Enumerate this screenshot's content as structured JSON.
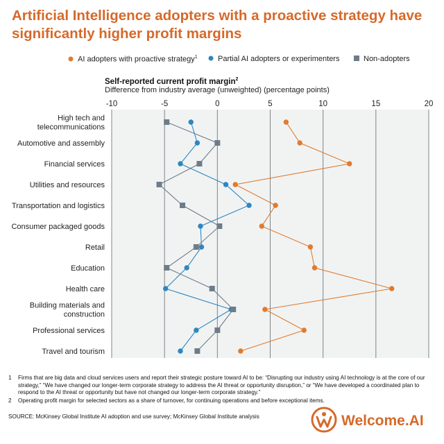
{
  "header": {
    "title": "Artificial Intelligence adopters with a proactive strategy have significantly higher profit margins"
  },
  "legend": {
    "items": [
      {
        "label": "AI adopters with proactive strategy",
        "sup": "1",
        "marker": "circle",
        "color": "#e07b2e"
      },
      {
        "label": "Partial AI adopters or experimenters",
        "sup": "",
        "marker": "circle",
        "color": "#2e86c1"
      },
      {
        "label": "Non-adopters",
        "sup": "",
        "marker": "square",
        "color": "#6d7c88"
      }
    ]
  },
  "chart_data": {
    "type": "scatter",
    "title": "Self-reported current profit margin",
    "title_sup": "2",
    "subtitle": "Difference from industry average (unweighted) (percentage points)",
    "xlim": [
      -10,
      20
    ],
    "xticks": [
      "-10",
      "-5",
      "0",
      "5",
      "10",
      "15",
      "20"
    ],
    "grid": true,
    "categories": [
      "High tech and telecommunications",
      "Automotive and assembly",
      "Financial services",
      "Utilities and resources",
      "Transportation and logistics",
      "Consumer packaged goods",
      "Retail",
      "Education",
      "Health care",
      "Building materials and construction",
      "Professional services",
      "Travel and tourism"
    ],
    "category_lines": [
      [
        "High tech and",
        "telecommunications"
      ],
      [
        "Automotive and assembly"
      ],
      [
        "Financial services"
      ],
      [
        "Utilities and resources"
      ],
      [
        "Transportation and logistics"
      ],
      [
        "Consumer packaged goods"
      ],
      [
        "Retail"
      ],
      [
        "Education"
      ],
      [
        "Health care"
      ],
      [
        "Building materials and",
        "construction"
      ],
      [
        "Professional services"
      ],
      [
        "Travel and tourism"
      ]
    ],
    "series": [
      {
        "name": "AI adopters with proactive strategy",
        "color": "#e07b2e",
        "marker": "circle",
        "values": [
          6.5,
          7.8,
          12.5,
          1.7,
          5.5,
          4.2,
          8.8,
          9.2,
          16.5,
          4.5,
          8.2,
          2.2
        ]
      },
      {
        "name": "Partial AI adopters or experimenters",
        "color": "#2e86c1",
        "marker": "circle",
        "values": [
          -2.5,
          -1.9,
          -3.5,
          0.8,
          3.0,
          -1.6,
          -1.5,
          -2.9,
          -4.9,
          1.3,
          -2.0,
          -3.5
        ]
      },
      {
        "name": "Non-adopters",
        "color": "#6d7c88",
        "marker": "square",
        "values": [
          -4.8,
          0.0,
          -1.7,
          -5.5,
          -3.3,
          0.2,
          -2.0,
          -4.8,
          -0.5,
          1.5,
          0.0,
          -1.9
        ]
      }
    ]
  },
  "footnotes": [
    {
      "num": "1",
      "text": "Firms that are big data and cloud services users and report their strategic posture toward AI to be: “Disrupting our industry using AI technology is at the core of our strategy,” “We have changed our longer-term corporate strategy to address the AI threat or opportunity disruption,” or “We have developed a coordinated plan to respond to the AI threat or opportunity but have not changed our longer-term corporate strategy.”"
    },
    {
      "num": "2",
      "text": "Operating profit margin for selected sectors as a share of turnover, for continuing operations and before exceptional items."
    }
  ],
  "source": "SOURCE:  McKinsey Global Institute AI adoption and use survey; McKinsey Global Institute analysis",
  "brand": {
    "name": "Welcome.AI",
    "color": "#d6692a"
  }
}
